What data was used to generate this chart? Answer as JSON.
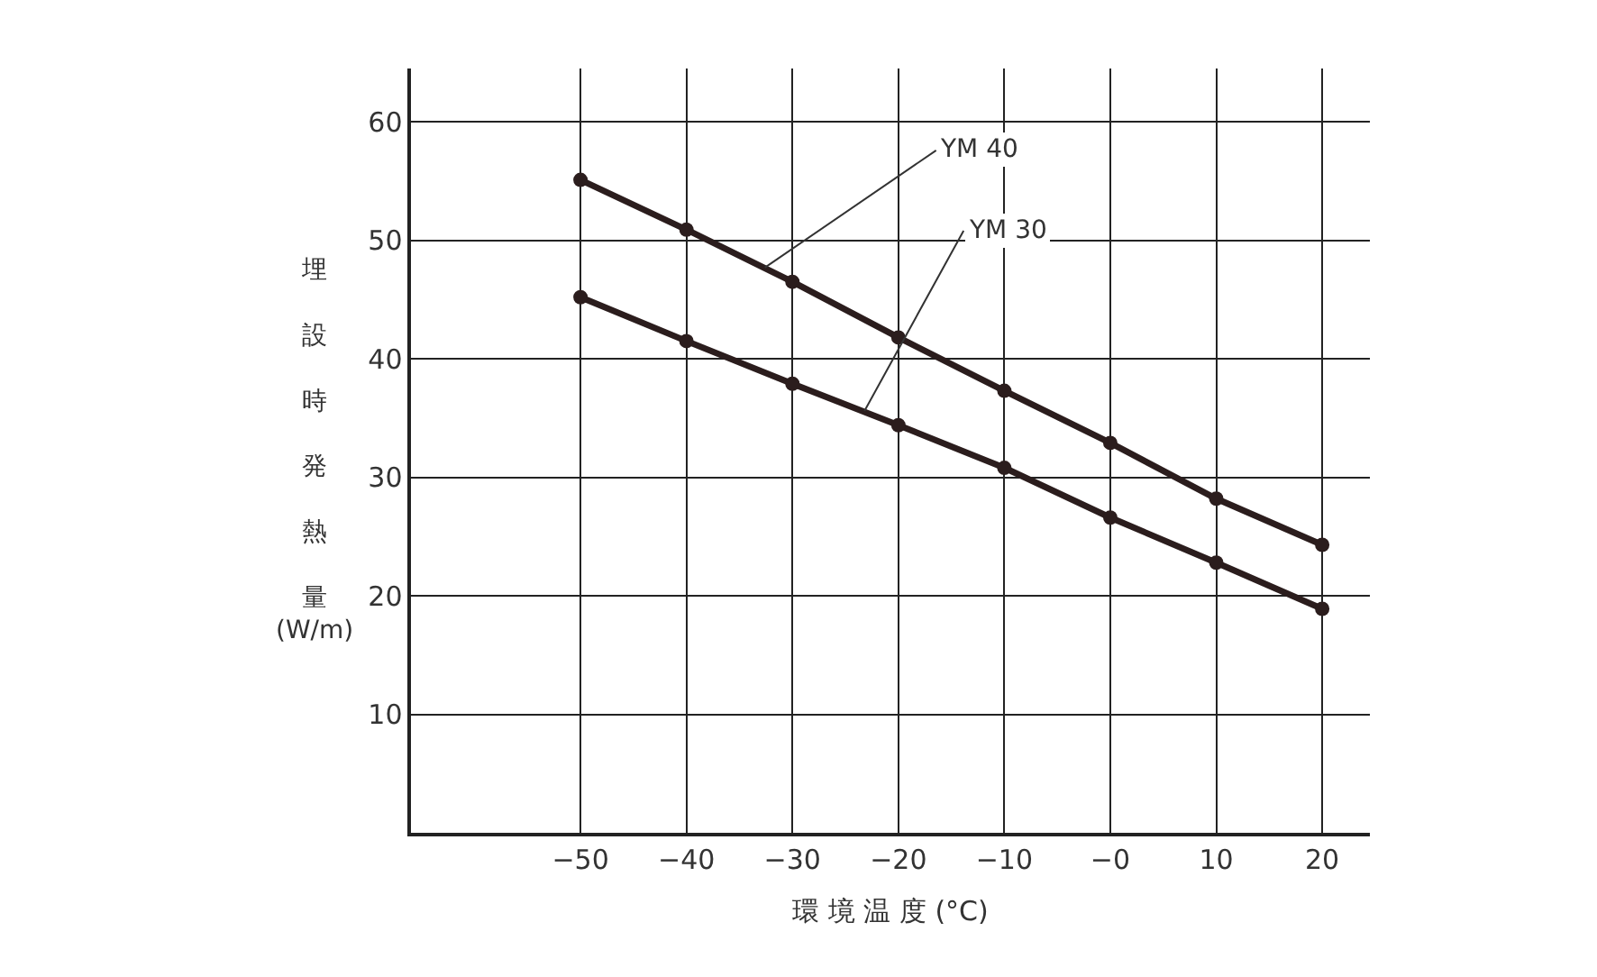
{
  "chart_data": {
    "type": "line",
    "xlabel": "環 境 温 度 (°C)",
    "ylabel": "埋設時発熱量 (W/m)",
    "x": [
      -50,
      -40,
      -30,
      -20,
      -10,
      0,
      10,
      20
    ],
    "series": [
      {
        "color": "#2b1d1d",
        "values": [
          55.1,
          50.9,
          46.5,
          41.8,
          37.3,
          32.9,
          28.2,
          24.3
        ]
      },
      {
        "color": "#2b1d1d",
        "values": [
          45.2,
          41.5,
          37.9,
          34.4,
          30.8,
          26.6,
          22.8,
          18.9
        ]
      }
    ],
    "annotations": [
      {
        "text": "YM 40",
        "x": -32.6,
        "y": 47.7
      },
      {
        "text": "YM 30",
        "x": -23.2,
        "y": 35.6
      }
    ],
    "xlim": [
      -66,
      24.5
    ],
    "ylim": [
      0,
      64.5
    ],
    "xticks": [
      -50,
      -40,
      -30,
      -20,
      -10,
      {
        "value": 0,
        "label": "−0"
      },
      10,
      20
    ],
    "yticks": [
      10,
      20,
      30,
      40,
      50,
      60
    ],
    "grid": true,
    "marker": "circle",
    "line_style": "solid"
  }
}
